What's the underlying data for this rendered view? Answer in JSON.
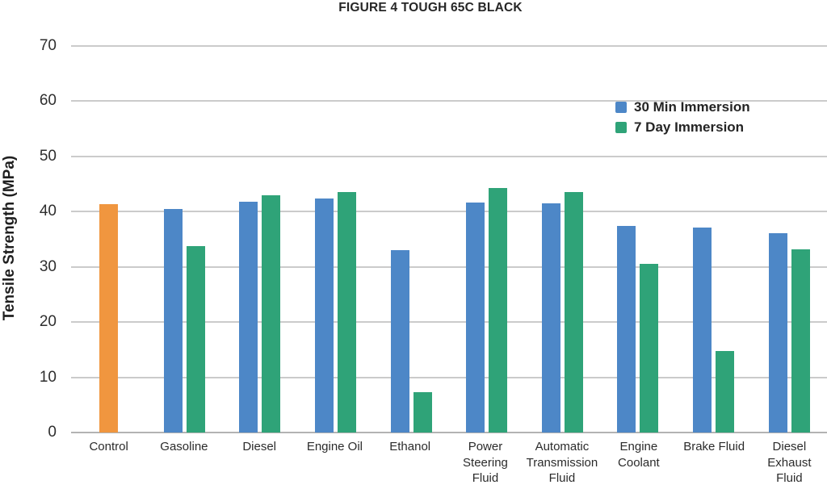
{
  "chart_data": {
    "type": "bar",
    "title": "FIGURE 4 TOUGH 65C BLACK",
    "xlabel": "",
    "ylabel": "Tensile Strength (MPa)",
    "ylim": [
      0,
      70
    ],
    "yticks": [
      70,
      60,
      50,
      40,
      30,
      20,
      10,
      0
    ],
    "grid": true,
    "legend_position": "top-right",
    "categories": [
      "Control",
      "Gasoline",
      "Diesel",
      "Engine Oil",
      "Ethanol",
      "Power Steering Fluid",
      "Automatic Transmission Fluid",
      "Engine Coolant",
      "Brake Fluid",
      "Diesel Exhaust Fluid"
    ],
    "series": [
      {
        "name": "Control",
        "color": "#f0963f",
        "in_legend": false,
        "values": [
          41.4,
          null,
          null,
          null,
          null,
          null,
          null,
          null,
          null,
          null
        ]
      },
      {
        "name": "30 Min Immersion",
        "color": "#4d87c7",
        "in_legend": true,
        "values": [
          null,
          40.5,
          41.8,
          42.4,
          33.1,
          41.6,
          41.5,
          37.4,
          37.1,
          36.1
        ]
      },
      {
        "name": "7 Day Immersion",
        "color": "#2fa378",
        "in_legend": true,
        "values": [
          null,
          33.8,
          42.9,
          43.6,
          7.3,
          44.3,
          43.5,
          30.5,
          14.7,
          33.2
        ]
      }
    ],
    "legend": [
      {
        "label": "30 Min Immersion",
        "color": "#4d87c7"
      },
      {
        "label": "7 Day Immersion",
        "color": "#2fa378"
      }
    ]
  },
  "colors": {
    "gridline": "#cbcbcb",
    "baseline": "#b3b3b3",
    "title_text": "#262626",
    "tick_text": "#2e2e2e"
  }
}
